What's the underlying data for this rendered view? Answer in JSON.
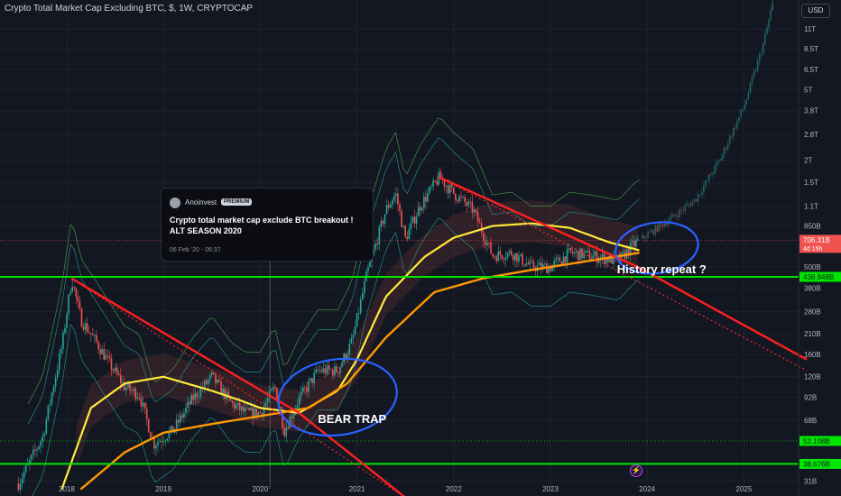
{
  "header": {
    "title": "Crypto Total Market Cap Excluding BTC, $, 1W, CRYPTOCAP",
    "currency": "USD"
  },
  "idea_popup": {
    "author": "Anoinvest",
    "badge": "PREMIUM",
    "title": "Crypto total market cap exclude BTC breakout ! ALT SEASON 2020",
    "date": "06 Feb '20 - 06:37"
  },
  "colors": {
    "background": "#131722",
    "up_candle": "#26a69a",
    "down_candle": "#ef5350",
    "ma_fast": "#ffeb3b",
    "ma_slow": "#ff9800",
    "support_line": "#00e600",
    "trend_line": "#ff2020",
    "annotation_circle": "#2962ff"
  },
  "icons": {
    "flash": "lightning-icon"
  },
  "chart_data": {
    "type": "candlestick",
    "symbol": "Crypto Total Market Cap Excluding BTC",
    "interval": "1W",
    "y_scale": "log",
    "ylim": [
      28000000000,
      16000000000000
    ],
    "x_ticks": [
      "2018",
      "2019",
      "2020",
      "2021",
      "2022",
      "2023",
      "2024",
      "2025"
    ],
    "y_ticks": [
      {
        "label": "11T",
        "value": 11000000000000
      },
      {
        "label": "8.5T",
        "value": 8500000000000
      },
      {
        "label": "6.5T",
        "value": 6500000000000
      },
      {
        "label": "5T",
        "value": 5000000000000
      },
      {
        "label": "3.8T",
        "value": 3800000000000
      },
      {
        "label": "2.8T",
        "value": 2800000000000
      },
      {
        "label": "2T",
        "value": 2000000000000
      },
      {
        "label": "1.5T",
        "value": 1500000000000
      },
      {
        "label": "1.1T",
        "value": 1100000000000
      },
      {
        "label": "850B",
        "value": 850000000000
      },
      {
        "label": "500B",
        "value": 500000000000
      },
      {
        "label": "380B",
        "value": 380000000000
      },
      {
        "label": "280B",
        "value": 280000000000
      },
      {
        "label": "210B",
        "value": 210000000000
      },
      {
        "label": "160B",
        "value": 160000000000
      },
      {
        "label": "120B",
        "value": 120000000000
      },
      {
        "label": "92B",
        "value": 92000000000
      },
      {
        "label": "68B",
        "value": 68000000000
      },
      {
        "label": "31B",
        "value": 31000000000
      }
    ],
    "price_tags": [
      {
        "label": "706.31B",
        "sub": "4d 15h",
        "value": 706310000000,
        "color": "#ef5350"
      },
      {
        "label": "438.948B",
        "value": 438948000000,
        "color": "#00e600"
      },
      {
        "label": "52.108B",
        "value": 52108000000,
        "color": "#00e600"
      },
      {
        "label": "38.676B",
        "value": 38676000000,
        "color": "#00e600"
      }
    ],
    "support_levels": [
      438948000000,
      52108000000,
      38676000000
    ],
    "price_path": [
      [
        2017.5,
        30000000000
      ],
      [
        2017.75,
        55000000000
      ],
      [
        2017.95,
        180000000000
      ],
      [
        2018.05,
        430000000000
      ],
      [
        2018.15,
        250000000000
      ],
      [
        2018.3,
        190000000000
      ],
      [
        2018.45,
        140000000000
      ],
      [
        2018.6,
        105000000000
      ],
      [
        2018.75,
        95000000000
      ],
      [
        2018.9,
        50000000000
      ],
      [
        2019.1,
        60000000000
      ],
      [
        2019.3,
        90000000000
      ],
      [
        2019.5,
        120000000000
      ],
      [
        2019.7,
        85000000000
      ],
      [
        2019.85,
        75000000000
      ],
      [
        2020.0,
        75000000000
      ],
      [
        2020.15,
        105000000000
      ],
      [
        2020.25,
        60000000000
      ],
      [
        2020.4,
        90000000000
      ],
      [
        2020.6,
        130000000000
      ],
      [
        2020.8,
        130000000000
      ],
      [
        2020.95,
        190000000000
      ],
      [
        2021.1,
        450000000000
      ],
      [
        2021.3,
        1050000000000
      ],
      [
        2021.4,
        1300000000000
      ],
      [
        2021.5,
        720000000000
      ],
      [
        2021.65,
        1100000000000
      ],
      [
        2021.85,
        1600000000000
      ],
      [
        2022.0,
        1300000000000
      ],
      [
        2022.2,
        1050000000000
      ],
      [
        2022.4,
        580000000000
      ],
      [
        2022.6,
        600000000000
      ],
      [
        2022.8,
        500000000000
      ],
      [
        2023.0,
        500000000000
      ],
      [
        2023.2,
        600000000000
      ],
      [
        2023.4,
        580000000000
      ],
      [
        2023.55,
        560000000000
      ],
      [
        2023.7,
        540000000000
      ],
      [
        2023.85,
        660000000000
      ],
      [
        2023.92,
        706310000000
      ]
    ],
    "projection_path": [
      [
        2023.92,
        706310000000
      ],
      [
        2024.2,
        900000000000
      ],
      [
        2024.5,
        1200000000000
      ],
      [
        2024.75,
        2000000000000
      ],
      [
        2025.0,
        4000000000000
      ],
      [
        2025.2,
        9000000000000
      ],
      [
        2025.3,
        15500000000000
      ]
    ],
    "ma_fast": [
      [
        2017.95,
        28000000000
      ],
      [
        2018.25,
        80000000000
      ],
      [
        2018.6,
        110000000000
      ],
      [
        2019.0,
        120000000000
      ],
      [
        2019.5,
        100000000000
      ],
      [
        2019.8,
        88000000000
      ],
      [
        2020.0,
        80000000000
      ],
      [
        2020.4,
        75000000000
      ],
      [
        2020.8,
        100000000000
      ],
      [
        2021.0,
        150000000000
      ],
      [
        2021.3,
        340000000000
      ],
      [
        2021.7,
        570000000000
      ],
      [
        2022.0,
        730000000000
      ],
      [
        2022.4,
        850000000000
      ],
      [
        2022.8,
        880000000000
      ],
      [
        2023.2,
        830000000000
      ],
      [
        2023.6,
        690000000000
      ],
      [
        2023.92,
        620000000000
      ]
    ],
    "ma_slow": [
      [
        2018.15,
        28000000000
      ],
      [
        2018.6,
        45000000000
      ],
      [
        2019.0,
        58000000000
      ],
      [
        2019.5,
        65000000000
      ],
      [
        2020.0,
        72000000000
      ],
      [
        2020.5,
        80000000000
      ],
      [
        2020.9,
        110000000000
      ],
      [
        2021.3,
        200000000000
      ],
      [
        2021.8,
        360000000000
      ],
      [
        2022.3,
        430000000000
      ],
      [
        2022.8,
        480000000000
      ],
      [
        2023.3,
        530000000000
      ],
      [
        2023.92,
        600000000000
      ]
    ],
    "trend_lines": [
      {
        "from": [
          2018.05,
          430000000000
        ],
        "to": [
          2020.4,
          75000000000
        ],
        "style": "solid"
      },
      {
        "from": [
          2020.4,
          75000000000
        ],
        "to": [
          2021.5,
          25000000000
        ],
        "style": "solid"
      },
      {
        "from": [
          2021.85,
          1600000000000
        ],
        "to": [
          2023.9,
          500000000000
        ],
        "style": "solid"
      },
      {
        "from": [
          2023.9,
          500000000000
        ],
        "to": [
          2025.65,
          150000000000
        ],
        "style": "solid"
      },
      {
        "from": [
          2018.05,
          430000000000
        ],
        "to": [
          2021.5,
          25000000000
        ],
        "style": "dotted"
      },
      {
        "from": [
          2021.85,
          1600000000000
        ],
        "to": [
          2025.65,
          130000000000
        ],
        "style": "dotted"
      }
    ],
    "annotations": [
      {
        "text": "BEAR TRAP",
        "x": 2020.95,
        "y": 66000000000
      },
      {
        "text": "History repeat ?",
        "x": 2024.15,
        "y": 460000000000
      }
    ],
    "annotation_circles": [
      {
        "cx": 2020.8,
        "cy": 92000000000
      },
      {
        "cx": 2024.1,
        "cy": 640000000000
      }
    ]
  }
}
